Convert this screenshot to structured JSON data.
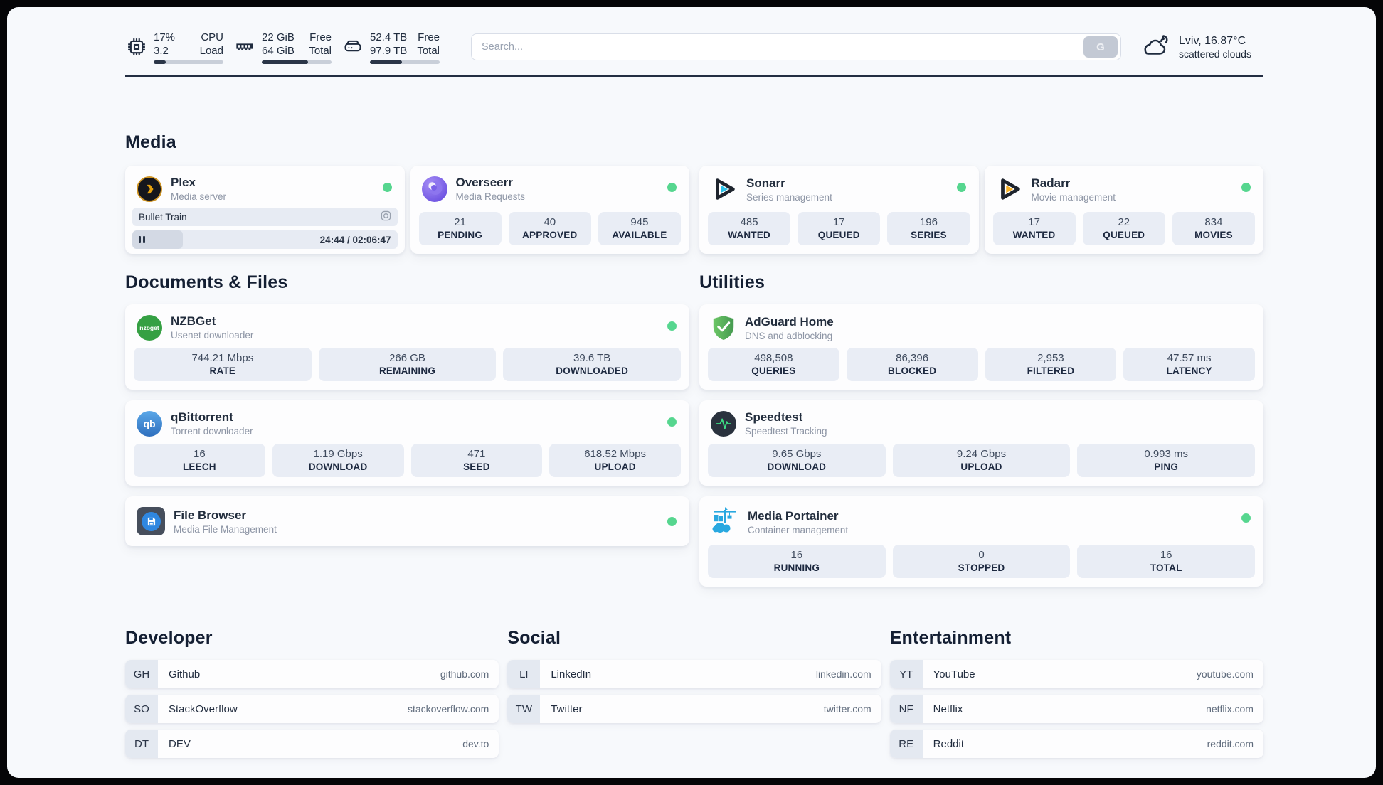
{
  "colors": {
    "status_online": "#56d68f",
    "topbar_fill": "#2b3648"
  },
  "topbar": {
    "cpu": {
      "values": [
        "17%",
        "3.2"
      ],
      "labels": [
        "CPU",
        "Load"
      ],
      "used_pct": 17
    },
    "memory": {
      "values": [
        "22 GiB",
        "64 GiB"
      ],
      "labels": [
        "Free",
        "Total"
      ],
      "used_pct": 66
    },
    "disk": {
      "values": [
        "52.4 TB",
        "97.9 TB"
      ],
      "labels": [
        "Free",
        "Total"
      ],
      "used_pct": 46
    },
    "search": {
      "placeholder": "Search...",
      "button_label": "G"
    },
    "weather": {
      "headline": "Lviv, 16.87°C",
      "condition": "scattered clouds"
    }
  },
  "sections": {
    "media": {
      "title": "Media",
      "plex": {
        "name": "Plex",
        "subtitle": "Media server",
        "now_playing": {
          "title": "Bullet Train",
          "time_display": "24:44 / 02:06:47",
          "progress_pct": 19
        }
      },
      "overseerr": {
        "name": "Overseerr",
        "subtitle": "Media Requests",
        "stats": [
          {
            "value": "21",
            "label": "PENDING"
          },
          {
            "value": "40",
            "label": "APPROVED"
          },
          {
            "value": "945",
            "label": "AVAILABLE"
          }
        ]
      },
      "sonarr": {
        "name": "Sonarr",
        "subtitle": "Series management",
        "stats": [
          {
            "value": "485",
            "label": "WANTED"
          },
          {
            "value": "17",
            "label": "QUEUED"
          },
          {
            "value": "196",
            "label": "SERIES"
          }
        ]
      },
      "radarr": {
        "name": "Radarr",
        "subtitle": "Movie management",
        "stats": [
          {
            "value": "17",
            "label": "WANTED"
          },
          {
            "value": "22",
            "label": "QUEUED"
          },
          {
            "value": "834",
            "label": "MOVIES"
          }
        ]
      }
    },
    "documents": {
      "title": "Documents & Files",
      "nzbget": {
        "name": "NZBGet",
        "subtitle": "Usenet downloader",
        "icon_text": "nzbget",
        "stats": [
          {
            "value": "744.21 Mbps",
            "label": "RATE"
          },
          {
            "value": "266 GB",
            "label": "REMAINING"
          },
          {
            "value": "39.6 TB",
            "label": "DOWNLOADED"
          }
        ]
      },
      "qbittorrent": {
        "name": "qBittorrent",
        "subtitle": "Torrent downloader",
        "icon_text": "qb",
        "stats": [
          {
            "value": "16",
            "label": "LEECH"
          },
          {
            "value": "1.19 Gbps",
            "label": "DOWNLOAD"
          },
          {
            "value": "471",
            "label": "SEED"
          },
          {
            "value": "618.52 Mbps",
            "label": "UPLOAD"
          }
        ]
      },
      "filebrowser": {
        "name": "File Browser",
        "subtitle": "Media File Management"
      }
    },
    "utilities": {
      "title": "Utilities",
      "adguard": {
        "name": "AdGuard Home",
        "subtitle": "DNS and adblocking",
        "stats": [
          {
            "value": "498,508",
            "label": "QUERIES"
          },
          {
            "value": "86,396",
            "label": "BLOCKED"
          },
          {
            "value": "2,953",
            "label": "FILTERED"
          },
          {
            "value": "47.57 ms",
            "label": "LATENCY"
          }
        ]
      },
      "speedtest": {
        "name": "Speedtest",
        "subtitle": "Speedtest Tracking",
        "stats": [
          {
            "value": "9.65 Gbps",
            "label": "DOWNLOAD"
          },
          {
            "value": "9.24 Gbps",
            "label": "UPLOAD"
          },
          {
            "value": "0.993 ms",
            "label": "PING"
          }
        ]
      },
      "portainer": {
        "name": "Media Portainer",
        "subtitle": "Container management",
        "stats": [
          {
            "value": "16",
            "label": "RUNNING"
          },
          {
            "value": "0",
            "label": "STOPPED"
          },
          {
            "value": "16",
            "label": "TOTAL"
          }
        ]
      }
    },
    "developer": {
      "title": "Developer",
      "links": [
        {
          "abbr": "GH",
          "name": "Github",
          "url": "github.com"
        },
        {
          "abbr": "SO",
          "name": "StackOverflow",
          "url": "stackoverflow.com"
        },
        {
          "abbr": "DT",
          "name": "DEV",
          "url": "dev.to"
        }
      ]
    },
    "social": {
      "title": "Social",
      "links": [
        {
          "abbr": "LI",
          "name": "LinkedIn",
          "url": "linkedin.com"
        },
        {
          "abbr": "TW",
          "name": "Twitter",
          "url": "twitter.com"
        }
      ]
    },
    "entertainment": {
      "title": "Entertainment",
      "links": [
        {
          "abbr": "YT",
          "name": "YouTube",
          "url": "youtube.com"
        },
        {
          "abbr": "NF",
          "name": "Netflix",
          "url": "netflix.com"
        },
        {
          "abbr": "RE",
          "name": "Reddit",
          "url": "reddit.com"
        }
      ]
    }
  }
}
